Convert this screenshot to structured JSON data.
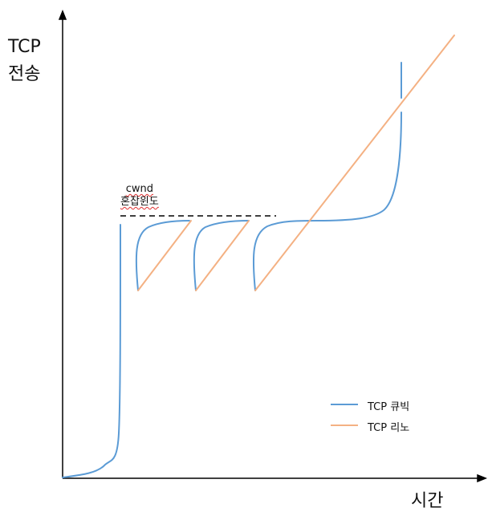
{
  "y_axis_label": {
    "line1": "TCP",
    "line2": "전송"
  },
  "x_axis_label": "시간",
  "annotation": {
    "line1": "cwnd",
    "line2": "혼잡윈도"
  },
  "legend": [
    {
      "label": "TCP 큐빅",
      "color": "#5b9bd5"
    },
    {
      "label": "TCP 리노",
      "color": "#f4b183"
    }
  ],
  "colors": {
    "axis": "#000000",
    "cubic": "#5b9bd5",
    "reno": "#f4b183",
    "threshold_line": "#000000"
  }
}
